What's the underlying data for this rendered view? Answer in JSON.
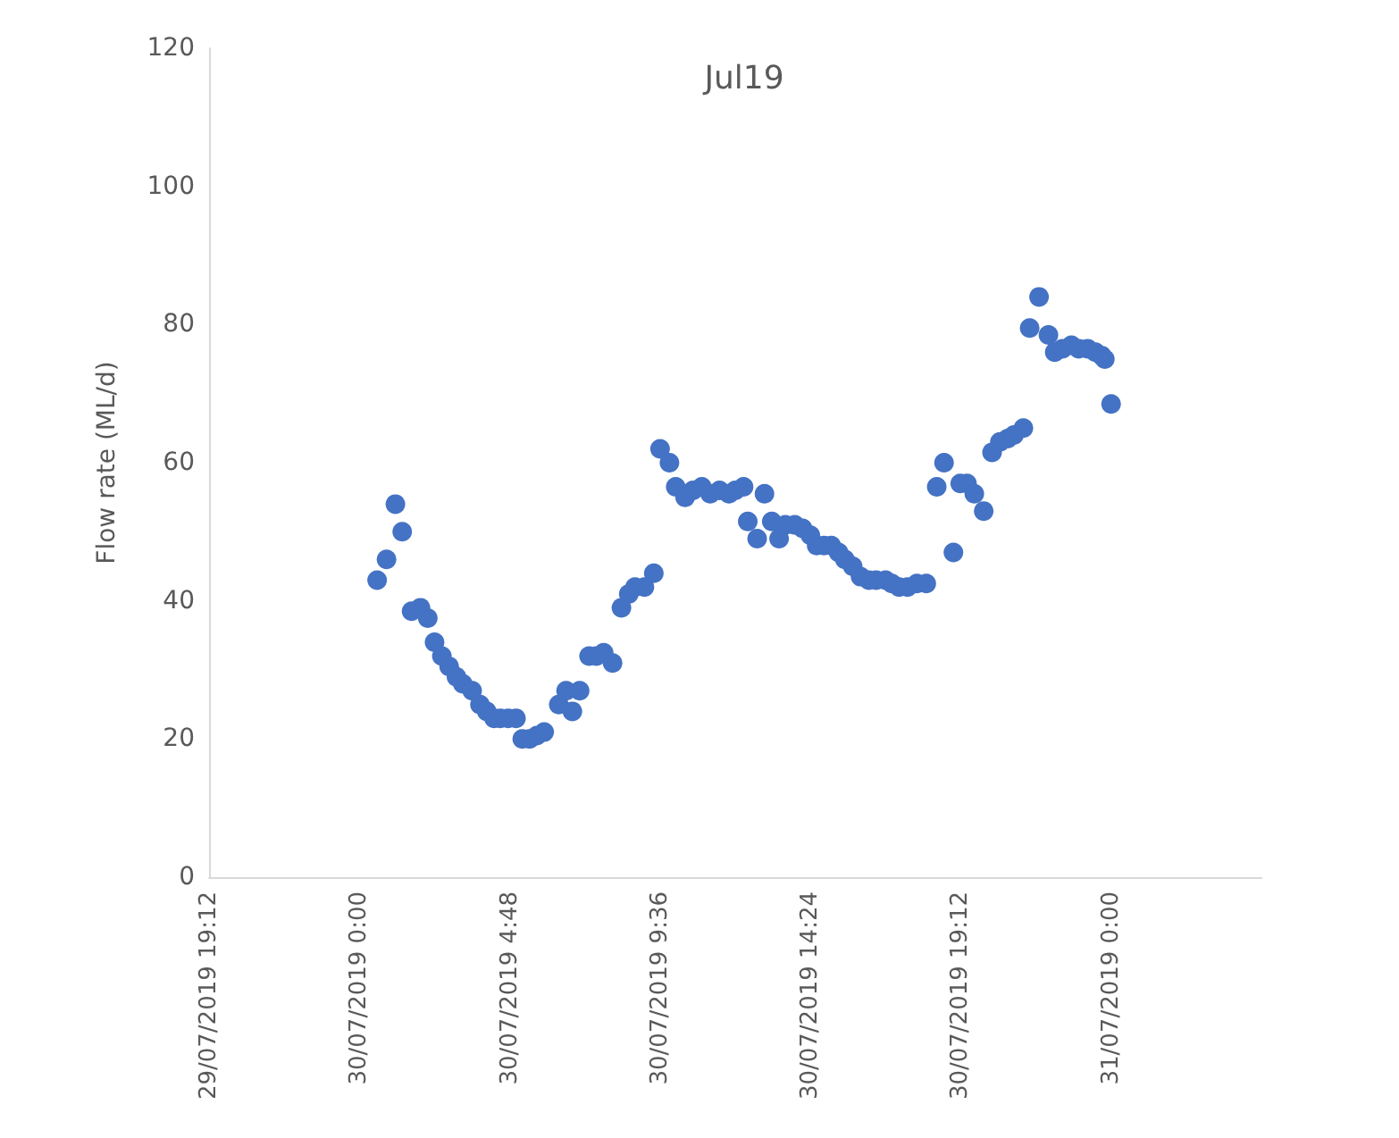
{
  "chart_data": {
    "type": "scatter",
    "title": "Jul19",
    "ylabel": "Flow rate (ML/d)",
    "x": [
      "2019-07-30T00:34",
      "2019-07-30T00:52",
      "2019-07-30T01:09",
      "2019-07-30T01:22",
      "2019-07-30T01:40",
      "2019-07-30T01:57",
      "2019-07-30T02:11",
      "2019-07-30T02:24",
      "2019-07-30T02:38",
      "2019-07-30T02:52",
      "2019-07-30T03:06",
      "2019-07-30T03:18",
      "2019-07-30T03:36",
      "2019-07-30T03:51",
      "2019-07-30T04:04",
      "2019-07-30T04:18",
      "2019-07-30T04:30",
      "2019-07-30T04:45",
      "2019-07-30T05:00",
      "2019-07-30T05:12",
      "2019-07-30T05:26",
      "2019-07-30T05:40",
      "2019-07-30T05:54",
      "2019-07-30T06:22",
      "2019-07-30T06:36",
      "2019-07-30T06:48",
      "2019-07-30T07:02",
      "2019-07-30T07:20",
      "2019-07-30T07:34",
      "2019-07-30T07:48",
      "2019-07-30T08:05",
      "2019-07-30T08:22",
      "2019-07-30T08:36",
      "2019-07-30T08:48",
      "2019-07-30T09:06",
      "2019-07-30T09:24",
      "2019-07-30T09:36",
      "2019-07-30T09:54",
      "2019-07-30T10:06",
      "2019-07-30T10:24",
      "2019-07-30T10:39",
      "2019-07-30T10:56",
      "2019-07-30T11:12",
      "2019-07-30T11:30",
      "2019-07-30T11:48",
      "2019-07-30T12:00",
      "2019-07-30T12:16",
      "2019-07-30T12:24",
      "2019-07-30T12:42",
      "2019-07-30T12:56",
      "2019-07-30T13:10",
      "2019-07-30T13:24",
      "2019-07-30T13:36",
      "2019-07-30T13:54",
      "2019-07-30T14:09",
      "2019-07-30T14:24",
      "2019-07-30T14:36",
      "2019-07-30T14:50",
      "2019-07-30T15:04",
      "2019-07-30T15:18",
      "2019-07-30T15:30",
      "2019-07-30T15:45",
      "2019-07-30T16:00",
      "2019-07-30T16:16",
      "2019-07-30T16:30",
      "2019-07-30T16:48",
      "2019-07-30T17:00",
      "2019-07-30T17:14",
      "2019-07-30T17:30",
      "2019-07-30T17:48",
      "2019-07-30T18:06",
      "2019-07-30T18:26",
      "2019-07-30T18:40",
      "2019-07-30T18:58",
      "2019-07-30T19:11",
      "2019-07-30T19:24",
      "2019-07-30T19:38",
      "2019-07-30T19:56",
      "2019-07-30T20:12",
      "2019-07-30T20:27",
      "2019-07-30T20:42",
      "2019-07-30T20:54",
      "2019-07-30T21:12",
      "2019-07-30T21:24",
      "2019-07-30T21:42",
      "2019-07-30T22:00",
      "2019-07-30T22:12",
      "2019-07-30T22:27",
      "2019-07-30T22:44",
      "2019-07-30T22:58",
      "2019-07-30T23:15",
      "2019-07-30T23:30",
      "2019-07-30T23:42",
      "2019-07-30T23:48",
      "2019-07-31T00:00"
    ],
    "series": [
      {
        "color": "#4472c4",
        "values": [
          43,
          46,
          54,
          50,
          38.5,
          39,
          37.5,
          34,
          32,
          30.5,
          29,
          28,
          27,
          25,
          24,
          23,
          23,
          23,
          23,
          20,
          20,
          20.5,
          21,
          25,
          27,
          24,
          27,
          32,
          32,
          32.5,
          31,
          39,
          41,
          42,
          42,
          44,
          62,
          60,
          56.5,
          55,
          56,
          56.5,
          55.5,
          56,
          55.5,
          56,
          56.5,
          51.5,
          49,
          55.5,
          51.5,
          49,
          51,
          51,
          50.5,
          49.5,
          48,
          48,
          48,
          47,
          46,
          45,
          43.5,
          43,
          43,
          43,
          42.5,
          42,
          42,
          42.5,
          42.5,
          56.5,
          60,
          47,
          57,
          57,
          55.5,
          53,
          61.5,
          63,
          63.5,
          64,
          65,
          79.5,
          84,
          78.5,
          76,
          76.5,
          77,
          76.5,
          76.5,
          76,
          75.5,
          75,
          68.5
        ]
      }
    ],
    "xlim": [
      "2019-07-29T19:12",
      "2019-07-31T04:48"
    ],
    "xticks": [
      {
        "value": "2019-07-29T19:12",
        "label": "29/07/2019 19:12"
      },
      {
        "value": "2019-07-30T00:00",
        "label": "30/07/2019 0:00"
      },
      {
        "value": "2019-07-30T04:48",
        "label": "30/07/2019 4:48"
      },
      {
        "value": "2019-07-30T09:36",
        "label": "30/07/2019 9:36"
      },
      {
        "value": "2019-07-30T14:24",
        "label": "30/07/2019 14:24"
      },
      {
        "value": "2019-07-30T19:12",
        "label": "30/07/2019 19:12"
      },
      {
        "value": "2019-07-31T00:00",
        "label": "31/07/2019 0:00"
      }
    ],
    "ylim": [
      0,
      120
    ],
    "yticks": [
      0,
      20,
      40,
      60,
      80,
      100,
      120
    ],
    "marker": "circle",
    "grid": false
  }
}
